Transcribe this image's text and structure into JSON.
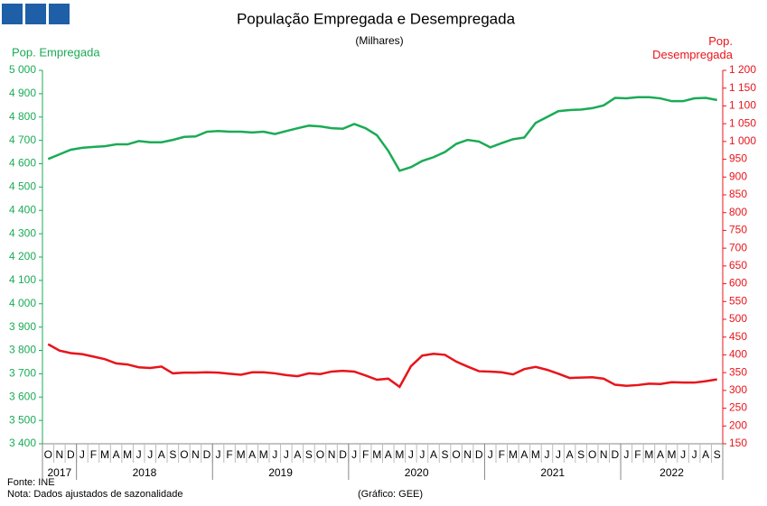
{
  "chart_data": {
    "type": "line",
    "title": "População Empregada e Desempregada",
    "subtitle": "(Milhares)",
    "y_label": "Pop. Empregada",
    "y2_label": "Pop. Desempregada",
    "categories": [
      "O",
      "N",
      "D",
      "J",
      "F",
      "M",
      "A",
      "M",
      "J",
      "J",
      "A",
      "S",
      "O",
      "N",
      "D",
      "J",
      "F",
      "M",
      "A",
      "M",
      "J",
      "J",
      "A",
      "S",
      "O",
      "N",
      "D",
      "J",
      "F",
      "M",
      "A",
      "M",
      "J",
      "J",
      "A",
      "S",
      "O",
      "N",
      "D",
      "J",
      "F",
      "M",
      "A",
      "M",
      "J",
      "J",
      "A",
      "S",
      "O",
      "N",
      "D",
      "J",
      "F",
      "M",
      "A",
      "M",
      "J",
      "J",
      "A",
      "S"
    ],
    "years": [
      "2017",
      "2018",
      "2019",
      "2020",
      "2021",
      "2022"
    ],
    "series": [
      {
        "name": "Pop. Empregada",
        "color": "#1aab55",
        "axis": "y",
        "values": [
          4620,
          4640,
          4660,
          4668,
          4672,
          4675,
          4683,
          4683,
          4697,
          4692,
          4692,
          4702,
          4715,
          4717,
          4737,
          4740,
          4737,
          4737,
          4734,
          4737,
          4727,
          4740,
          4752,
          4763,
          4760,
          4752,
          4750,
          4770,
          4752,
          4722,
          4655,
          4570,
          4585,
          4612,
          4628,
          4650,
          4685,
          4702,
          4695,
          4670,
          4688,
          4705,
          4712,
          4775,
          4800,
          4825,
          4830,
          4832,
          4838,
          4850,
          4882,
          4880,
          4885,
          4885,
          4880,
          4868,
          4868,
          4880,
          4882,
          4873
        ]
      },
      {
        "name": "Pop. Desempregada",
        "color": "#e8141b",
        "axis": "y2",
        "values": [
          430,
          412,
          405,
          402,
          395,
          388,
          376,
          373,
          365,
          363,
          367,
          348,
          350,
          350,
          351,
          350,
          347,
          344,
          351,
          351,
          348,
          343,
          340,
          348,
          346,
          353,
          355,
          353,
          342,
          330,
          333,
          310,
          368,
          398,
          403,
          400,
          381,
          367,
          354,
          353,
          351,
          345,
          360,
          366,
          358,
          347,
          335,
          336,
          337,
          333,
          316,
          313,
          315,
          319,
          318,
          323,
          322,
          322,
          326,
          331
        ]
      }
    ],
    "ylim": [
      3400,
      5000
    ],
    "yticks": [
      {
        "value": 3400,
        "label": "3 400"
      },
      {
        "value": 3500,
        "label": "3 500"
      },
      {
        "value": 3600,
        "label": "3 600"
      },
      {
        "value": 3700,
        "label": "3 700"
      },
      {
        "value": 3800,
        "label": "3 800"
      },
      {
        "value": 3900,
        "label": "3 900"
      },
      {
        "value": 4000,
        "label": "4 000"
      },
      {
        "value": 4100,
        "label": "4 100"
      },
      {
        "value": 4200,
        "label": "4 200"
      },
      {
        "value": 4300,
        "label": "4 300"
      },
      {
        "value": 4400,
        "label": "4 400"
      },
      {
        "value": 4500,
        "label": "4 500"
      },
      {
        "value": 4600,
        "label": "4 600"
      },
      {
        "value": 4700,
        "label": "4 700"
      },
      {
        "value": 4800,
        "label": "4 800"
      },
      {
        "value": 4900,
        "label": "4 900"
      },
      {
        "value": 5000,
        "label": "5 000"
      }
    ],
    "y2lim": [
      150,
      1200
    ],
    "y2ticks": [
      150,
      200,
      250,
      300,
      350,
      400,
      450,
      500,
      550,
      600,
      650,
      700,
      750,
      800,
      850,
      900,
      950,
      {
        "value": 1000,
        "label": "1 000"
      },
      {
        "value": 1050,
        "label": "1 050"
      },
      {
        "value": 1100,
        "label": "1 100"
      },
      {
        "value": 1150,
        "label": "1 150"
      },
      {
        "value": 1200,
        "label": "1 200"
      }
    ],
    "source": "Fonte: INE",
    "note": "Nota: Dados ajustados de sazonalidade",
    "credit": "(Gráfico: GEE)"
  }
}
